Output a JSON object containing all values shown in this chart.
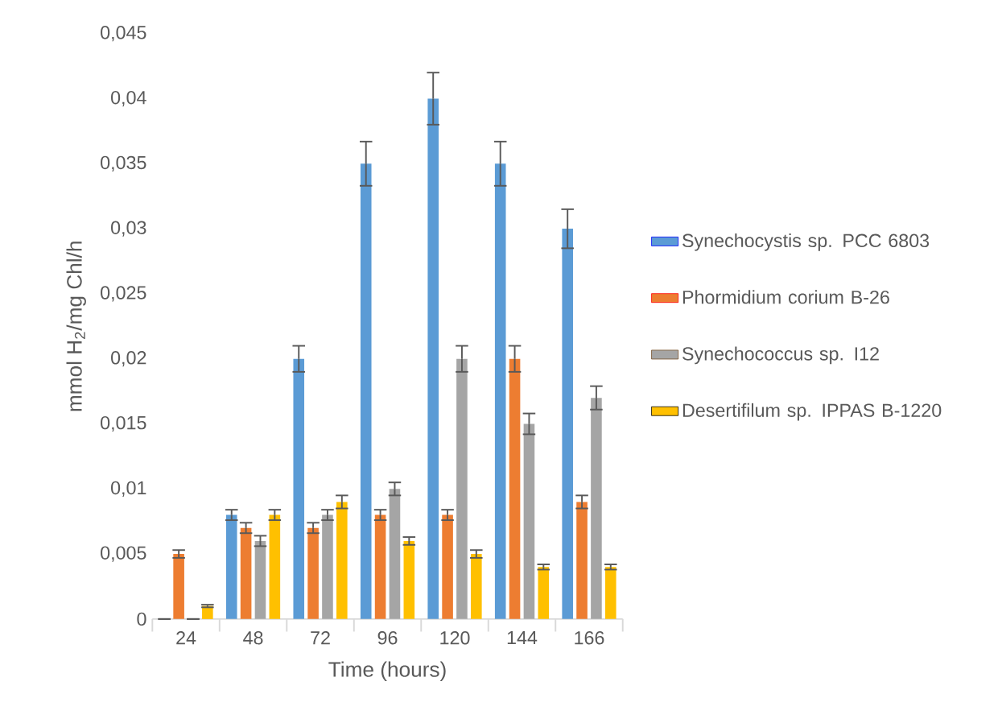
{
  "chart_data": {
    "type": "bar",
    "xlabel": "Time (hours)",
    "ylabel": "mmol H$_{2}$/mg Chl/h",
    "categories": [
      "24",
      "48",
      "72",
      "96",
      "120",
      "144",
      "166"
    ],
    "series": [
      {
        "name": "Synechocystis sp. PCC 6803",
        "color": "#5b9bd5",
        "values": [
          0,
          0.008,
          0.02,
          0.035,
          0.04,
          0.035,
          0.03
        ],
        "errors": [
          0,
          0.0004,
          0.001,
          0.0017,
          0.002,
          0.0017,
          0.0015
        ]
      },
      {
        "name": "Phormidium corium B-26",
        "color": "#ed7d31",
        "values": [
          0.005,
          0.007,
          0.007,
          0.008,
          0.008,
          0.02,
          0.009
        ],
        "errors": [
          0.0003,
          0.0004,
          0.0004,
          0.0004,
          0.0004,
          0.001,
          0.0005
        ]
      },
      {
        "name": "Synechococcus sp. I12",
        "color": "#a5a5a5",
        "values": [
          0,
          0.006,
          0.008,
          0.01,
          0.02,
          0.015,
          0.017
        ],
        "errors": [
          0,
          0.0004,
          0.0004,
          0.0005,
          0.001,
          0.0008,
          0.0009
        ]
      },
      {
        "name": "Desertifilum sp. IPPAS B-1220",
        "color": "#ffc000",
        "values": [
          0.001,
          0.008,
          0.009,
          0.006,
          0.005,
          0.004,
          0.004
        ],
        "errors": [
          0.0001,
          0.0004,
          0.0005,
          0.0003,
          0.0003,
          0.0002,
          0.0002
        ]
      }
    ],
    "ylim": [
      0,
      0.045
    ],
    "yticks": [
      {
        "value": 0,
        "label": "0"
      },
      {
        "value": 0.005,
        "label": "0,005"
      },
      {
        "value": 0.01,
        "label": "0,01"
      },
      {
        "value": 0.015,
        "label": "0,015"
      },
      {
        "value": 0.02,
        "label": "0,02"
      },
      {
        "value": 0.025,
        "label": "0,025"
      },
      {
        "value": 0.03,
        "label": "0,03"
      },
      {
        "value": 0.035,
        "label": "0,035"
      },
      {
        "value": 0.04,
        "label": "0,04"
      },
      {
        "value": 0.045,
        "label": "0,045"
      }
    ],
    "legend": "right"
  }
}
